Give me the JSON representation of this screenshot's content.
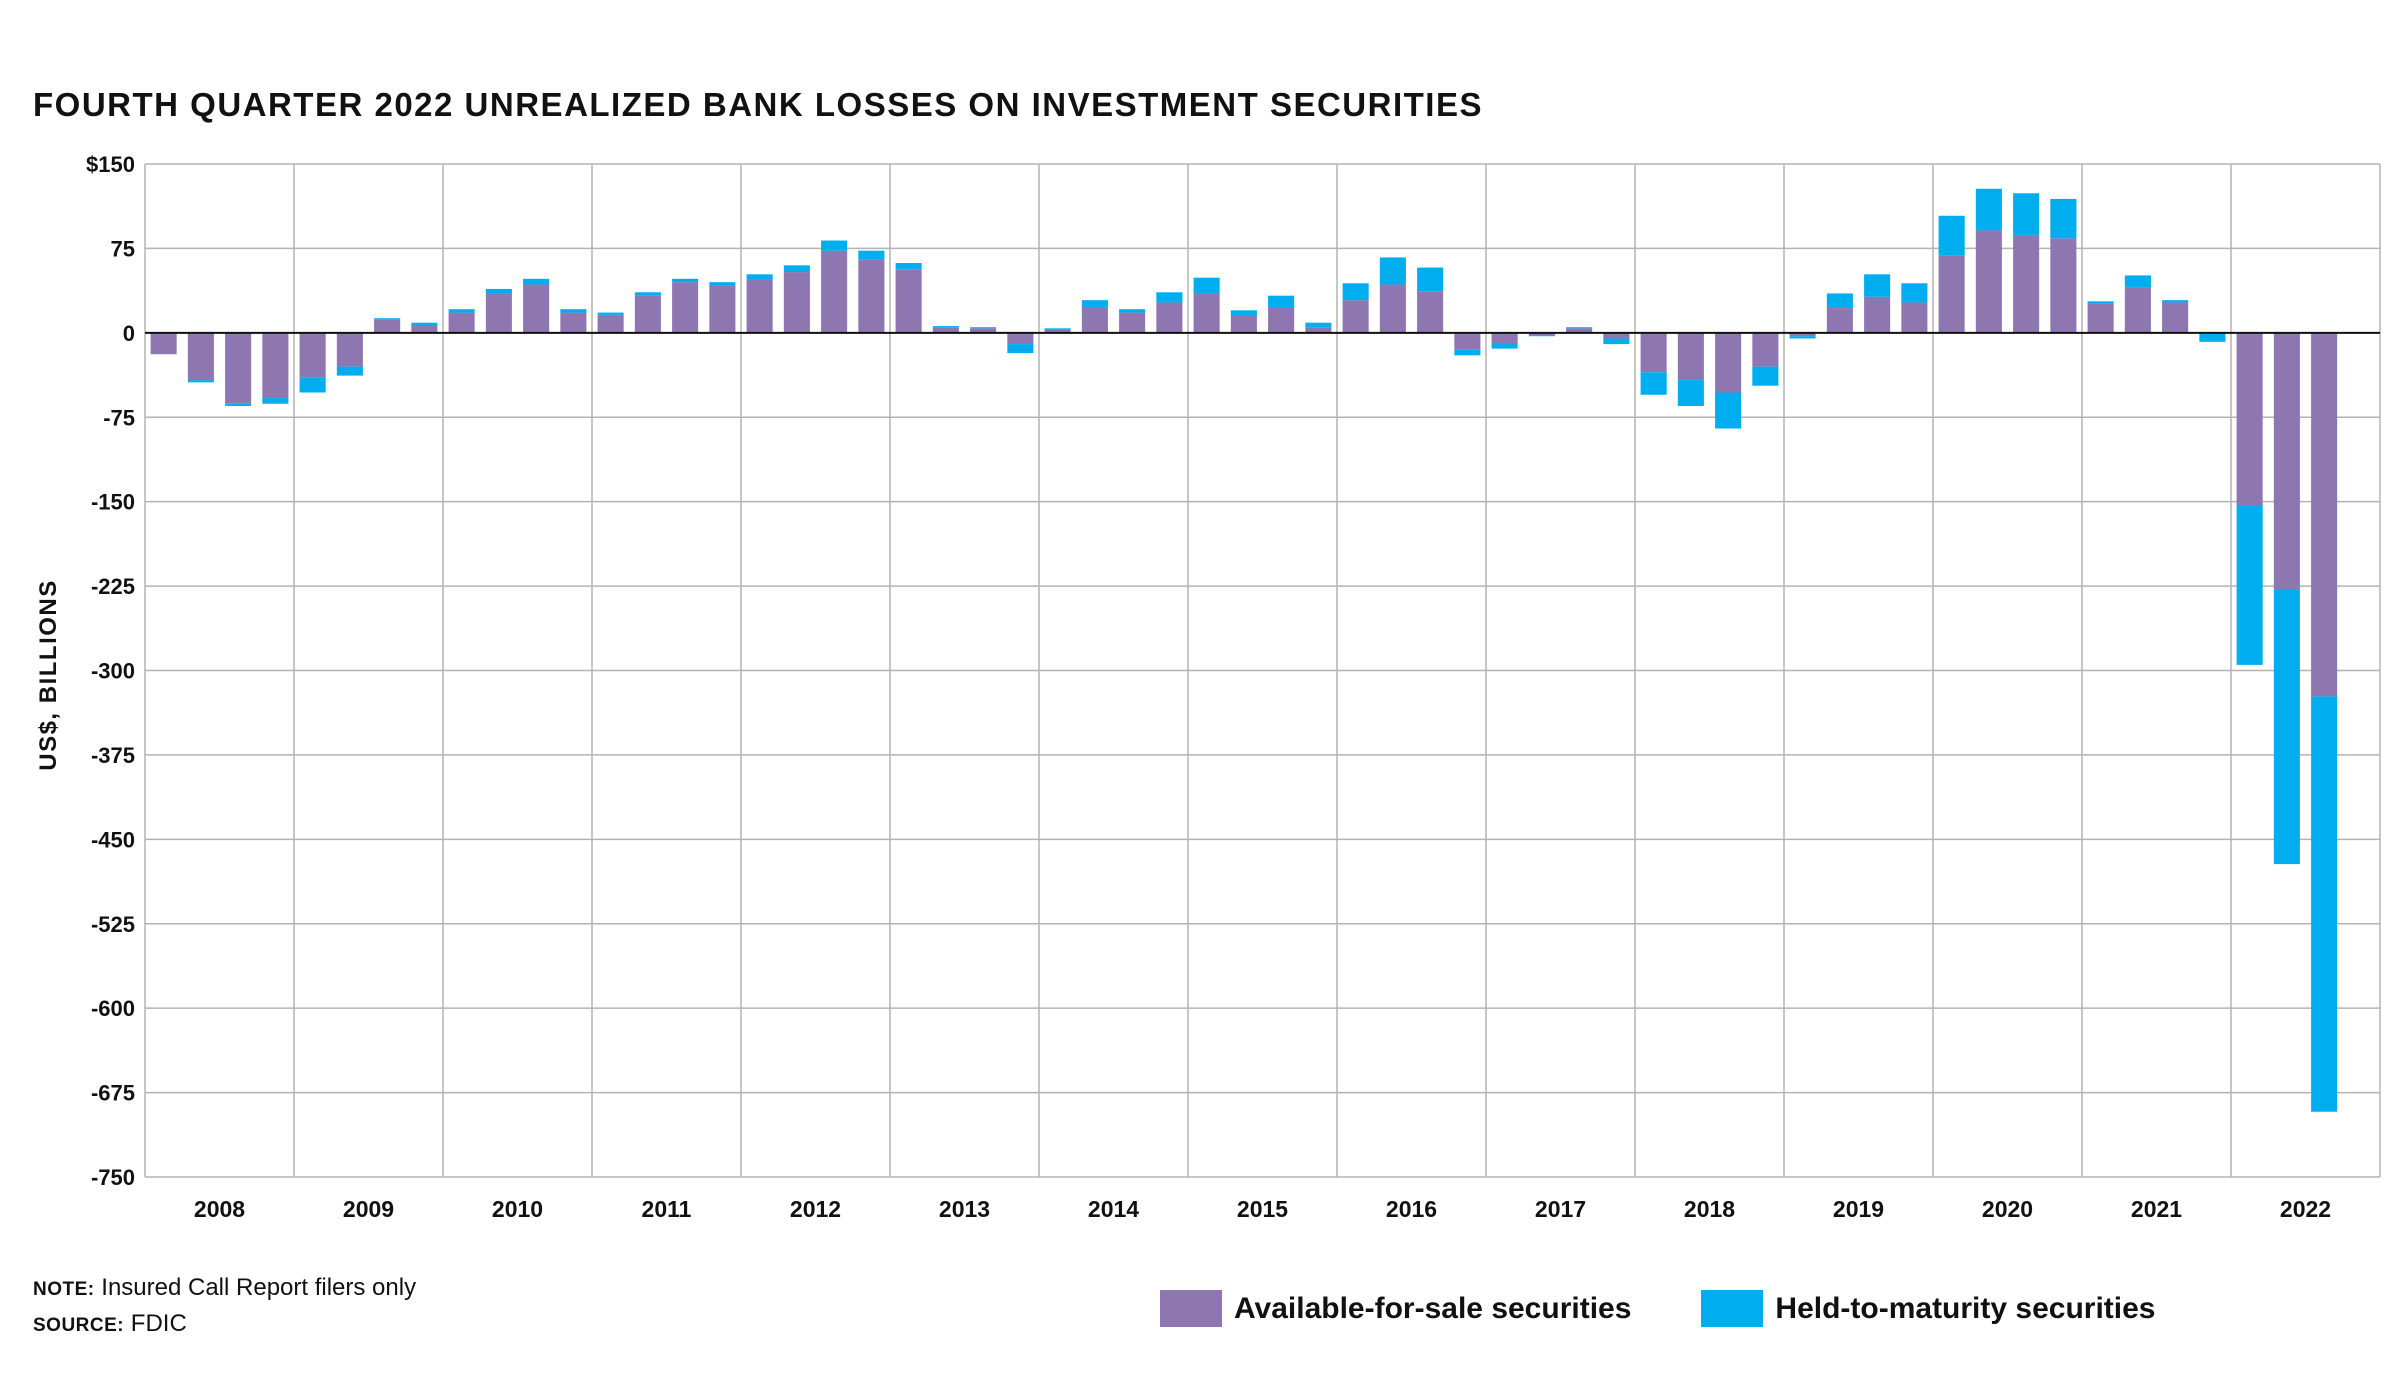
{
  "chart_data": {
    "type": "bar",
    "stacked": true,
    "title": "FOURTH QUARTER 2022 UNREALIZED BANK LOSSES ON INVESTMENT SECURITIES",
    "ylabel": "US$, BILLIONS",
    "xlabel": "",
    "ylim": [
      -750,
      150
    ],
    "yticks": [
      150,
      75,
      0,
      -75,
      -150,
      -225,
      -300,
      -375,
      -450,
      -525,
      -600,
      -675,
      -750
    ],
    "ytick_labels": [
      "$150",
      "75",
      "0",
      "-75",
      "-150",
      "-225",
      "-300",
      "-375",
      "-450",
      "-525",
      "-600",
      "-675",
      "-750"
    ],
    "year_labels": [
      "2008",
      "2009",
      "2010",
      "2011",
      "2012",
      "2013",
      "2014",
      "2015",
      "2016",
      "2017",
      "2018",
      "2019",
      "2020",
      "2021",
      "2022"
    ],
    "grid": true,
    "legend_position": "bottom-right",
    "categories": [
      "2008Q1",
      "2008Q2",
      "2008Q3",
      "2008Q4",
      "2009Q1",
      "2009Q2",
      "2009Q3",
      "2009Q4",
      "2010Q1",
      "2010Q2",
      "2010Q3",
      "2010Q4",
      "2011Q1",
      "2011Q2",
      "2011Q3",
      "2011Q4",
      "2012Q1",
      "2012Q2",
      "2012Q3",
      "2012Q4",
      "2013Q1",
      "2013Q2",
      "2013Q3",
      "2013Q4",
      "2014Q1",
      "2014Q2",
      "2014Q3",
      "2014Q4",
      "2015Q1",
      "2015Q2",
      "2015Q3",
      "2015Q4",
      "2016Q1",
      "2016Q2",
      "2016Q3",
      "2016Q4",
      "2017Q1",
      "2017Q2",
      "2017Q3",
      "2017Q4",
      "2018Q1",
      "2018Q2",
      "2018Q3",
      "2018Q4",
      "2019Q1",
      "2019Q2",
      "2019Q3",
      "2019Q4",
      "2020Q1",
      "2020Q2",
      "2020Q3",
      "2020Q4",
      "2021Q1",
      "2021Q2",
      "2021Q3",
      "2021Q4",
      "2022Q1",
      "2022Q2",
      "2022Q3",
      "2022Q4"
    ],
    "series": [
      {
        "name": "Available-for-sale securities",
        "color": "#8e77b1",
        "values": [
          -19,
          -42,
          -63,
          -58,
          -40,
          -30,
          12,
          7,
          18,
          35,
          43,
          18,
          16,
          33,
          45,
          42,
          47,
          54,
          73,
          65,
          56,
          5,
          4,
          -10,
          3,
          23,
          18,
          27,
          35,
          15,
          23,
          5,
          29,
          43,
          37,
          -15,
          -9,
          -2,
          4,
          -5,
          -35,
          -42,
          -53,
          -30,
          -3,
          22,
          32,
          27,
          69,
          91,
          87,
          84,
          26,
          40,
          27,
          0,
          -153,
          -228,
          -323,
          null
        ]
      },
      {
        "name": "Held-to-maturity securities",
        "color": "#00adef",
        "values": [
          0,
          -2,
          -2,
          -5,
          -13,
          -8,
          1,
          2,
          3,
          4,
          5,
          3,
          2,
          3,
          3,
          3,
          5,
          6,
          9,
          8,
          6,
          1,
          1,
          -8,
          1,
          6,
          3,
          9,
          14,
          5,
          10,
          4,
          15,
          24,
          21,
          -5,
          -5,
          -1,
          1,
          -5,
          -20,
          -23,
          -32,
          -17,
          -2,
          13,
          20,
          17,
          35,
          37,
          37,
          35,
          2,
          11,
          2,
          -8,
          -142,
          -244,
          -369,
          null
        ]
      }
    ]
  },
  "note": {
    "key": "NOTE:",
    "text": " Insured Call Report filers only"
  },
  "source": {
    "key": "SOURCE:",
    "text": " FDIC"
  },
  "legend": [
    {
      "label": "Available-for-sale securities",
      "color": "#8e77b1"
    },
    {
      "label": "Held-to-maturity securities",
      "color": "#00adef"
    }
  ]
}
